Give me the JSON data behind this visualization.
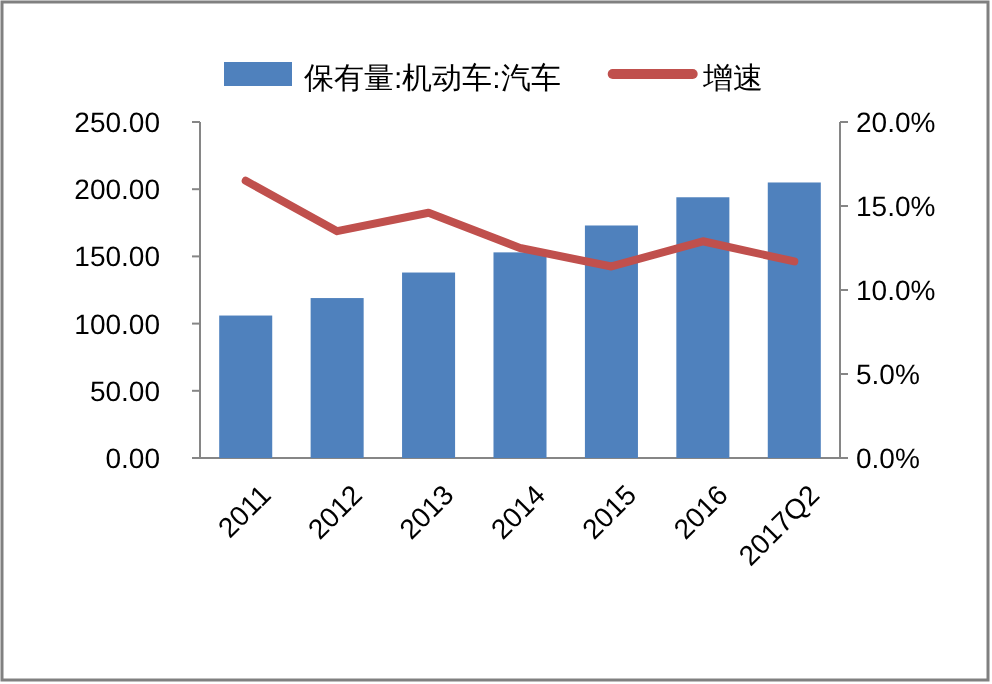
{
  "chart_data": {
    "type": "bar",
    "categories": [
      "2011",
      "2012",
      "2013",
      "2014",
      "2015",
      "2016",
      "2017Q2"
    ],
    "series": [
      {
        "name": "保有量:机动车:汽车",
        "color": "#4f81bd",
        "values": [
          106,
          119,
          138,
          153,
          173,
          194,
          205
        ]
      },
      {
        "name": "增速",
        "type": "line",
        "axis": "y2",
        "color": "#c0504d",
        "values": [
          16.5,
          13.5,
          14.6,
          12.5,
          11.4,
          12.9,
          11.7
        ]
      }
    ],
    "ylim": [
      0,
      250
    ],
    "yticks": [
      {
        "value": 0,
        "label": "0.00"
      },
      {
        "value": 50,
        "label": "50.00"
      },
      {
        "value": 100,
        "label": "100.00"
      },
      {
        "value": 150,
        "label": "150.00"
      },
      {
        "value": 200,
        "label": "200.00"
      },
      {
        "value": 250,
        "label": "250.00"
      }
    ],
    "y2lim": [
      0,
      20
    ],
    "y2ticks": [
      {
        "value": 0,
        "label": "0.0%"
      },
      {
        "value": 5,
        "label": "5.0%"
      },
      {
        "value": 10,
        "label": "10.0%"
      },
      {
        "value": 15,
        "label": "15.0%"
      },
      {
        "value": 20,
        "label": "20.0%"
      }
    ],
    "legend": "top",
    "grid": false,
    "marker": "none"
  }
}
